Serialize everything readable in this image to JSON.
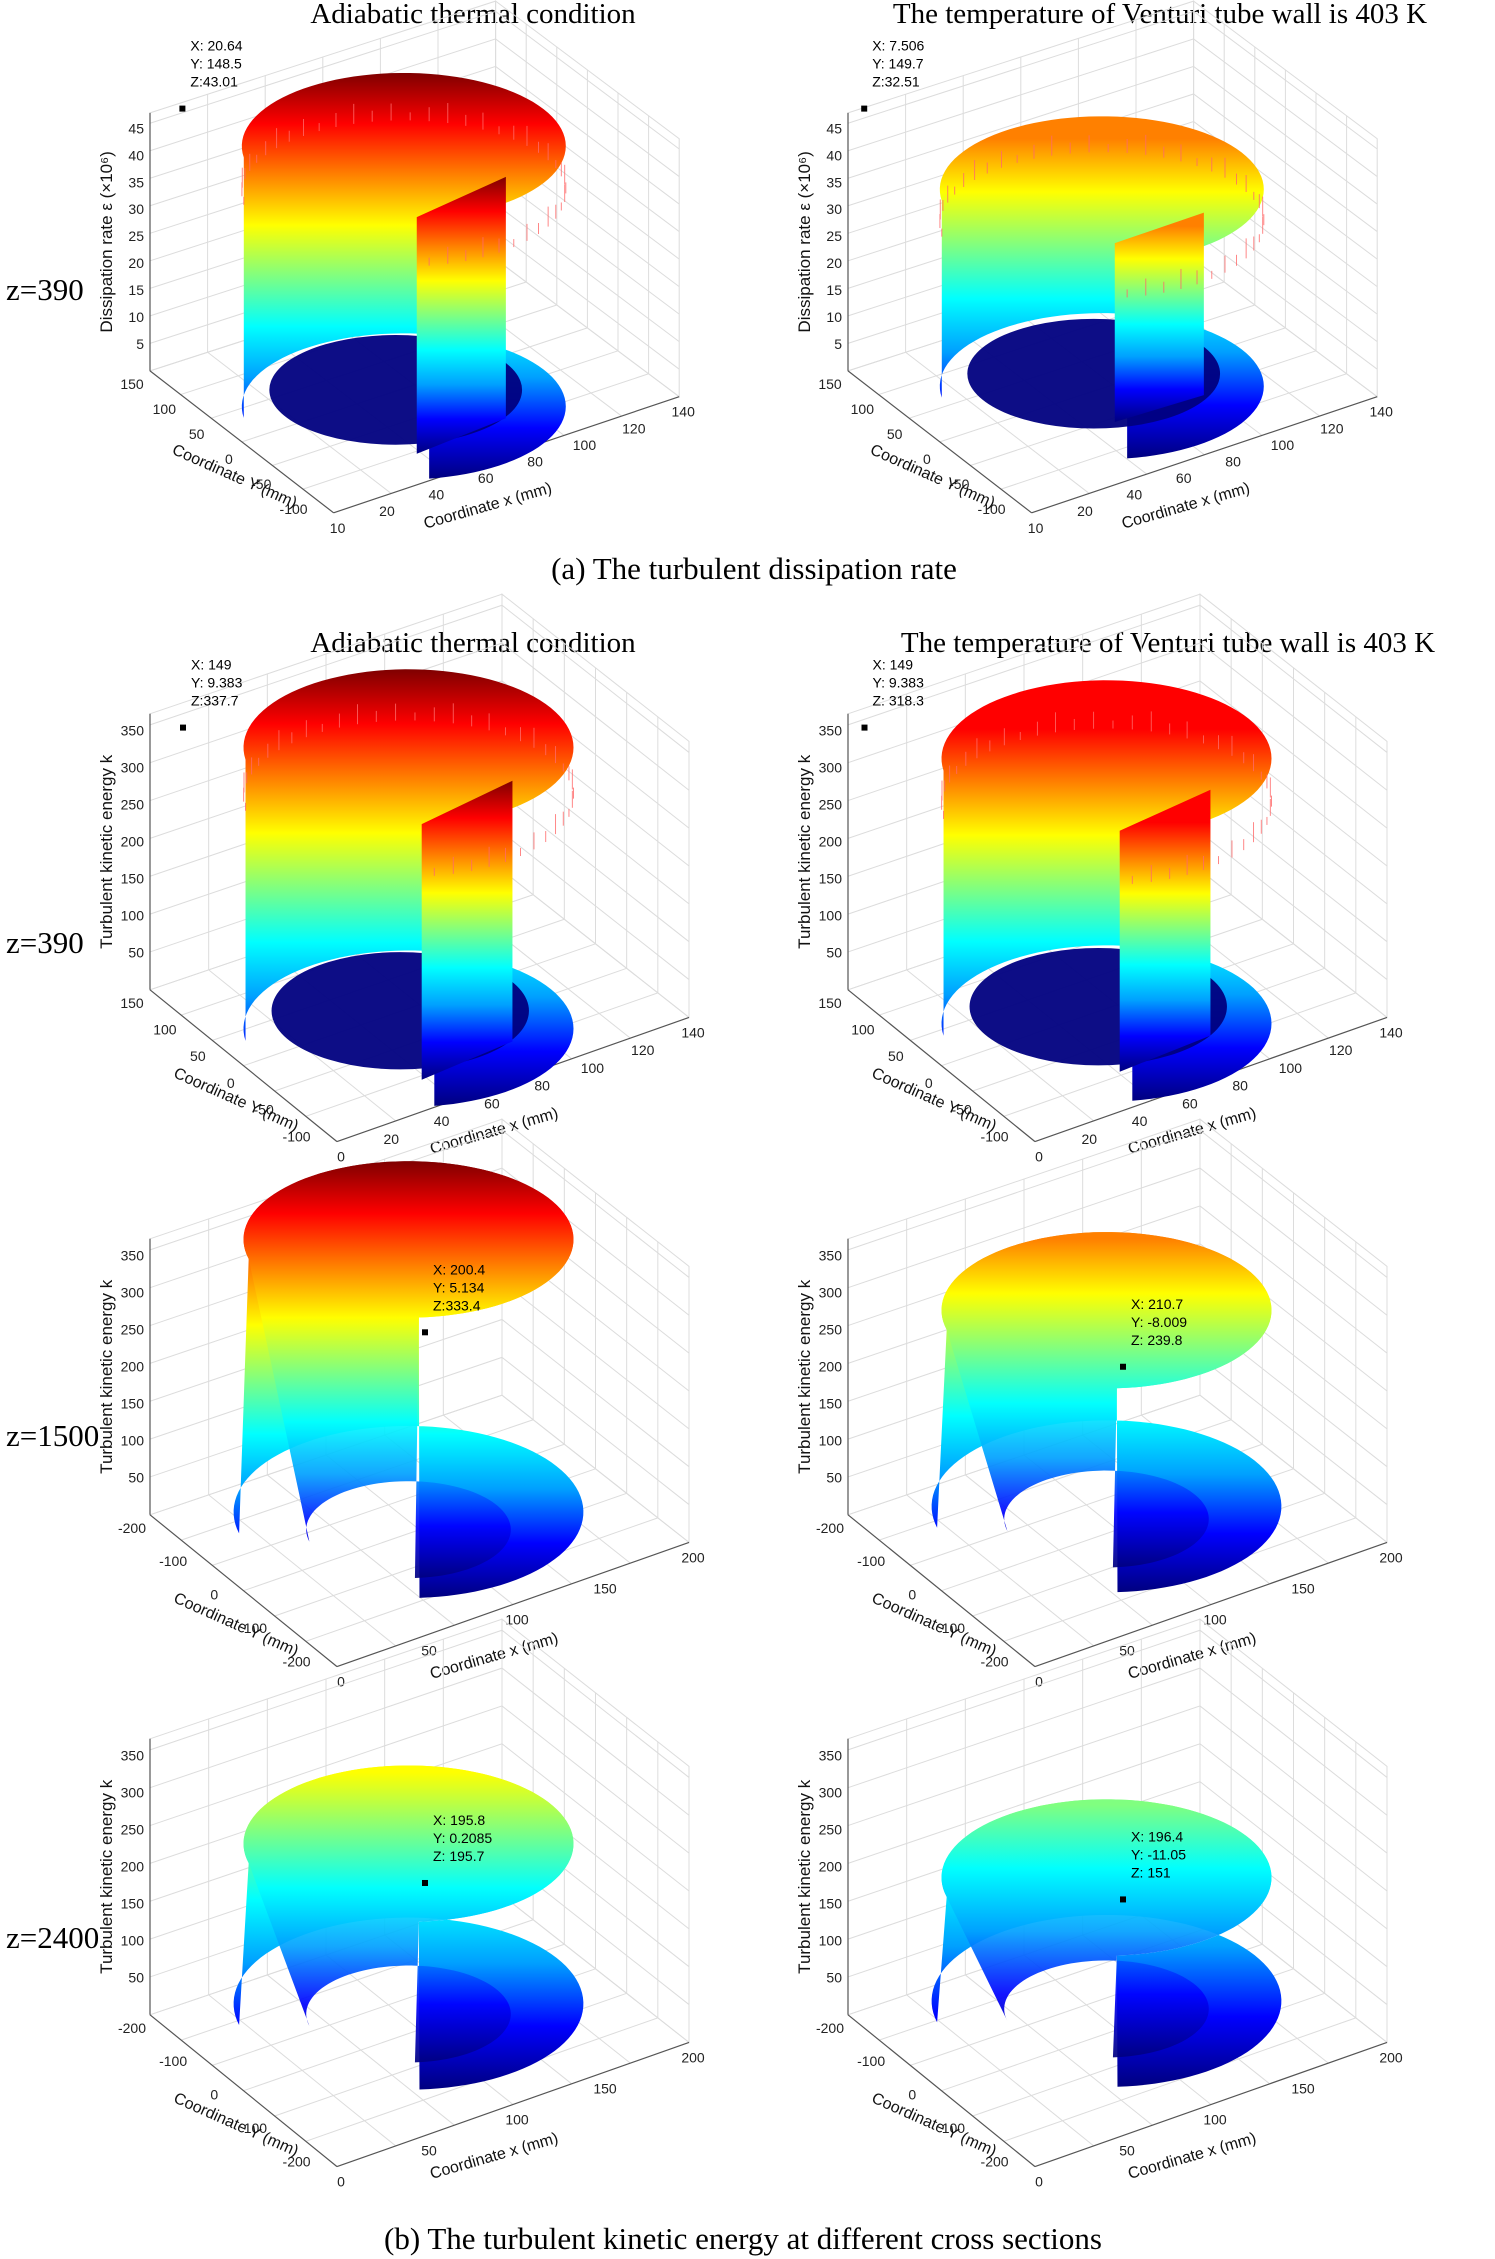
{
  "figure": {
    "column_titles": [
      "Adiabatic thermal condition",
      "The temperature of Venturi tube wall is 403 K"
    ],
    "caption_a": "(a) The turbulent dissipation rate",
    "caption_b": "(b) The turbulent kinetic energy at different cross sections",
    "row_labels": [
      "z=390",
      "z=390",
      "z=1500",
      "z=2400"
    ]
  },
  "colormap": [
    "#00007f",
    "#0000ff",
    "#00a0ff",
    "#00ffff",
    "#80ff80",
    "#ffff00",
    "#ff8000",
    "#ff0000",
    "#7f0000"
  ],
  "chart_data": [
    {
      "type": "surface",
      "section": "a",
      "row": "z=390",
      "condition": "Adiabatic thermal condition",
      "zlabel": "Dissipation rate ε (×10⁶)",
      "xlabel": "Coordinate x (mm)",
      "ylabel": "Coordinate Y (mm)",
      "zticks": [
        "5",
        "10",
        "15",
        "20",
        "25",
        "30",
        "35",
        "40",
        "45"
      ],
      "xticks": [
        "10",
        "20",
        "40",
        "60",
        "80",
        "100",
        "120",
        "140"
      ],
      "yticks": [
        "150",
        "100",
        "50",
        "0",
        "-50",
        "-100"
      ],
      "datatip": {
        "x": 20.64,
        "y": 148.5,
        "z": 43.01
      },
      "datatip_text": [
        "X: 20.64",
        "Y: 148.5",
        "Z:43.01"
      ],
      "peak": 43.01,
      "zmax": 45,
      "shape": "horseshoe-wall",
      "spiky": true
    },
    {
      "type": "surface",
      "section": "a",
      "row": "z=390",
      "condition": "The temperature of Venturi tube wall is 403 K",
      "zlabel": "Dissipation rate ε (×10⁶)",
      "xlabel": "Coordinate x (mm)",
      "ylabel": "Coordinate Y (mm)",
      "zticks": [
        "5",
        "10",
        "15",
        "20",
        "25",
        "30",
        "35",
        "40",
        "45"
      ],
      "xticks": [
        "10",
        "20",
        "40",
        "60",
        "80",
        "100",
        "120",
        "140"
      ],
      "yticks": [
        "150",
        "100",
        "50",
        "0",
        "-50",
        "-100"
      ],
      "datatip": {
        "x": 7.506,
        "y": 149.7,
        "z": 32.51
      },
      "datatip_text": [
        "X: 7.506",
        "Y: 149.7",
        "Z:32.51"
      ],
      "peak": 32.51,
      "zmax": 45,
      "shape": "horseshoe-wall",
      "spiky": true
    },
    {
      "type": "surface",
      "section": "b",
      "row": "z=390",
      "condition": "Adiabatic thermal condition",
      "zlabel": "Turbulent kinetic energy k",
      "xlabel": "Coordinate x (mm)",
      "ylabel": "Coordinate Y (mm)",
      "zticks": [
        "50",
        "100",
        "150",
        "200",
        "250",
        "300",
        "350"
      ],
      "xticks": [
        "0",
        "20",
        "40",
        "60",
        "80",
        "100",
        "120",
        "140"
      ],
      "yticks": [
        "150",
        "100",
        "50",
        "0",
        "-50",
        "-100"
      ],
      "datatip": {
        "x": 149,
        "y": 9.383,
        "z": 337.7
      },
      "datatip_text": [
        "X: 149",
        "Y: 9.383",
        "Z:337.7"
      ],
      "peak": 337.7,
      "zmax": 350,
      "shape": "horseshoe-wall",
      "spiky": true
    },
    {
      "type": "surface",
      "section": "b",
      "row": "z=390",
      "condition": "The temperature of Venturi tube wall is 403 K",
      "zlabel": "Turbulent kinetic energy k",
      "xlabel": "Coordinate x (mm)",
      "ylabel": "Coordinate Y (mm)",
      "zticks": [
        "50",
        "100",
        "150",
        "200",
        "250",
        "300",
        "350"
      ],
      "xticks": [
        "0",
        "20",
        "40",
        "60",
        "80",
        "100",
        "120",
        "140"
      ],
      "yticks": [
        "150",
        "100",
        "50",
        "0",
        "-50",
        "-100"
      ],
      "datatip": {
        "x": 149,
        "y": 9.383,
        "z": 318.3
      },
      "datatip_text": [
        "X: 149",
        "Y: 9.383",
        "Z: 318.3"
      ],
      "peak": 318.3,
      "zmax": 350,
      "shape": "horseshoe-wall",
      "spiky": true
    },
    {
      "type": "surface",
      "section": "b",
      "row": "z=1500",
      "condition": "Adiabatic thermal condition",
      "zlabel": "Turbulent kinetic energy k",
      "xlabel": "Coordinate x (mm)",
      "ylabel": "Coordinate Y (mm)",
      "zticks": [
        "50",
        "100",
        "150",
        "200",
        "250",
        "300",
        "350"
      ],
      "xticks": [
        "0",
        "50",
        "100",
        "150",
        "200"
      ],
      "yticks": [
        "-200",
        "-100",
        "0",
        "100",
        "-200"
      ],
      "datatip": {
        "x": 200.4,
        "y": 5.134,
        "z": 333.4
      },
      "datatip_text": [
        "X: 200.4",
        "Y: 5.134",
        "Z:333.4"
      ],
      "peak": 333.4,
      "zmax": 350,
      "shape": "horseshoe-ridge",
      "spiky": false
    },
    {
      "type": "surface",
      "section": "b",
      "row": "z=1500",
      "condition": "The temperature of Venturi tube wall is 403 K",
      "zlabel": "Turbulent kinetic energy k",
      "xlabel": "Coordinate x (mm)",
      "ylabel": "Coordinate Y (mm)",
      "zticks": [
        "50",
        "100",
        "150",
        "200",
        "250",
        "300",
        "350"
      ],
      "xticks": [
        "0",
        "50",
        "100",
        "150",
        "200"
      ],
      "yticks": [
        "-200",
        "-100",
        "0",
        "100",
        "-200"
      ],
      "datatip": {
        "x": 210.7,
        "y": -8.009,
        "z": 239.8
      },
      "datatip_text": [
        "X: 210.7",
        "Y: -8.009",
        "Z: 239.8"
      ],
      "peak": 239.8,
      "zmax": 350,
      "shape": "horseshoe-ridge",
      "spiky": false
    },
    {
      "type": "surface",
      "section": "b",
      "row": "z=2400",
      "condition": "Adiabatic thermal condition",
      "zlabel": "Turbulent kinetic energy k",
      "xlabel": "Coordinate x (mm)",
      "ylabel": "Coordinate Y (mm)",
      "zticks": [
        "50",
        "100",
        "150",
        "200",
        "250",
        "300",
        "350"
      ],
      "xticks": [
        "0",
        "50",
        "100",
        "150",
        "200"
      ],
      "yticks": [
        "-200",
        "-100",
        "0",
        "100",
        "-200"
      ],
      "datatip": {
        "x": 195.8,
        "y": 0.2085,
        "z": 195.7
      },
      "datatip_text": [
        "X: 195.8",
        "Y: 0.2085",
        "Z: 195.7"
      ],
      "peak": 195.7,
      "zmax": 350,
      "shape": "horseshoe-ridge",
      "spiky": false
    },
    {
      "type": "surface",
      "section": "b",
      "row": "z=2400",
      "condition": "The temperature of Venturi tube wall is 403 K",
      "zlabel": "Turbulent kinetic energy k",
      "xlabel": "Coordinate x (mm)",
      "ylabel": "Coordinate Y (mm)",
      "zticks": [
        "50",
        "100",
        "150",
        "200",
        "250",
        "300",
        "350"
      ],
      "xticks": [
        "0",
        "50",
        "100",
        "150",
        "200"
      ],
      "yticks": [
        "-200",
        "-100",
        "0",
        "100",
        "-200"
      ],
      "datatip": {
        "x": 196.4,
        "y": -11.05,
        "z": 151
      },
      "datatip_text": [
        "X: 196.4",
        "Y: -11.05",
        "Z: 151"
      ],
      "peak": 151,
      "zmax": 350,
      "shape": "horseshoe-ridge",
      "spiky": false
    }
  ]
}
